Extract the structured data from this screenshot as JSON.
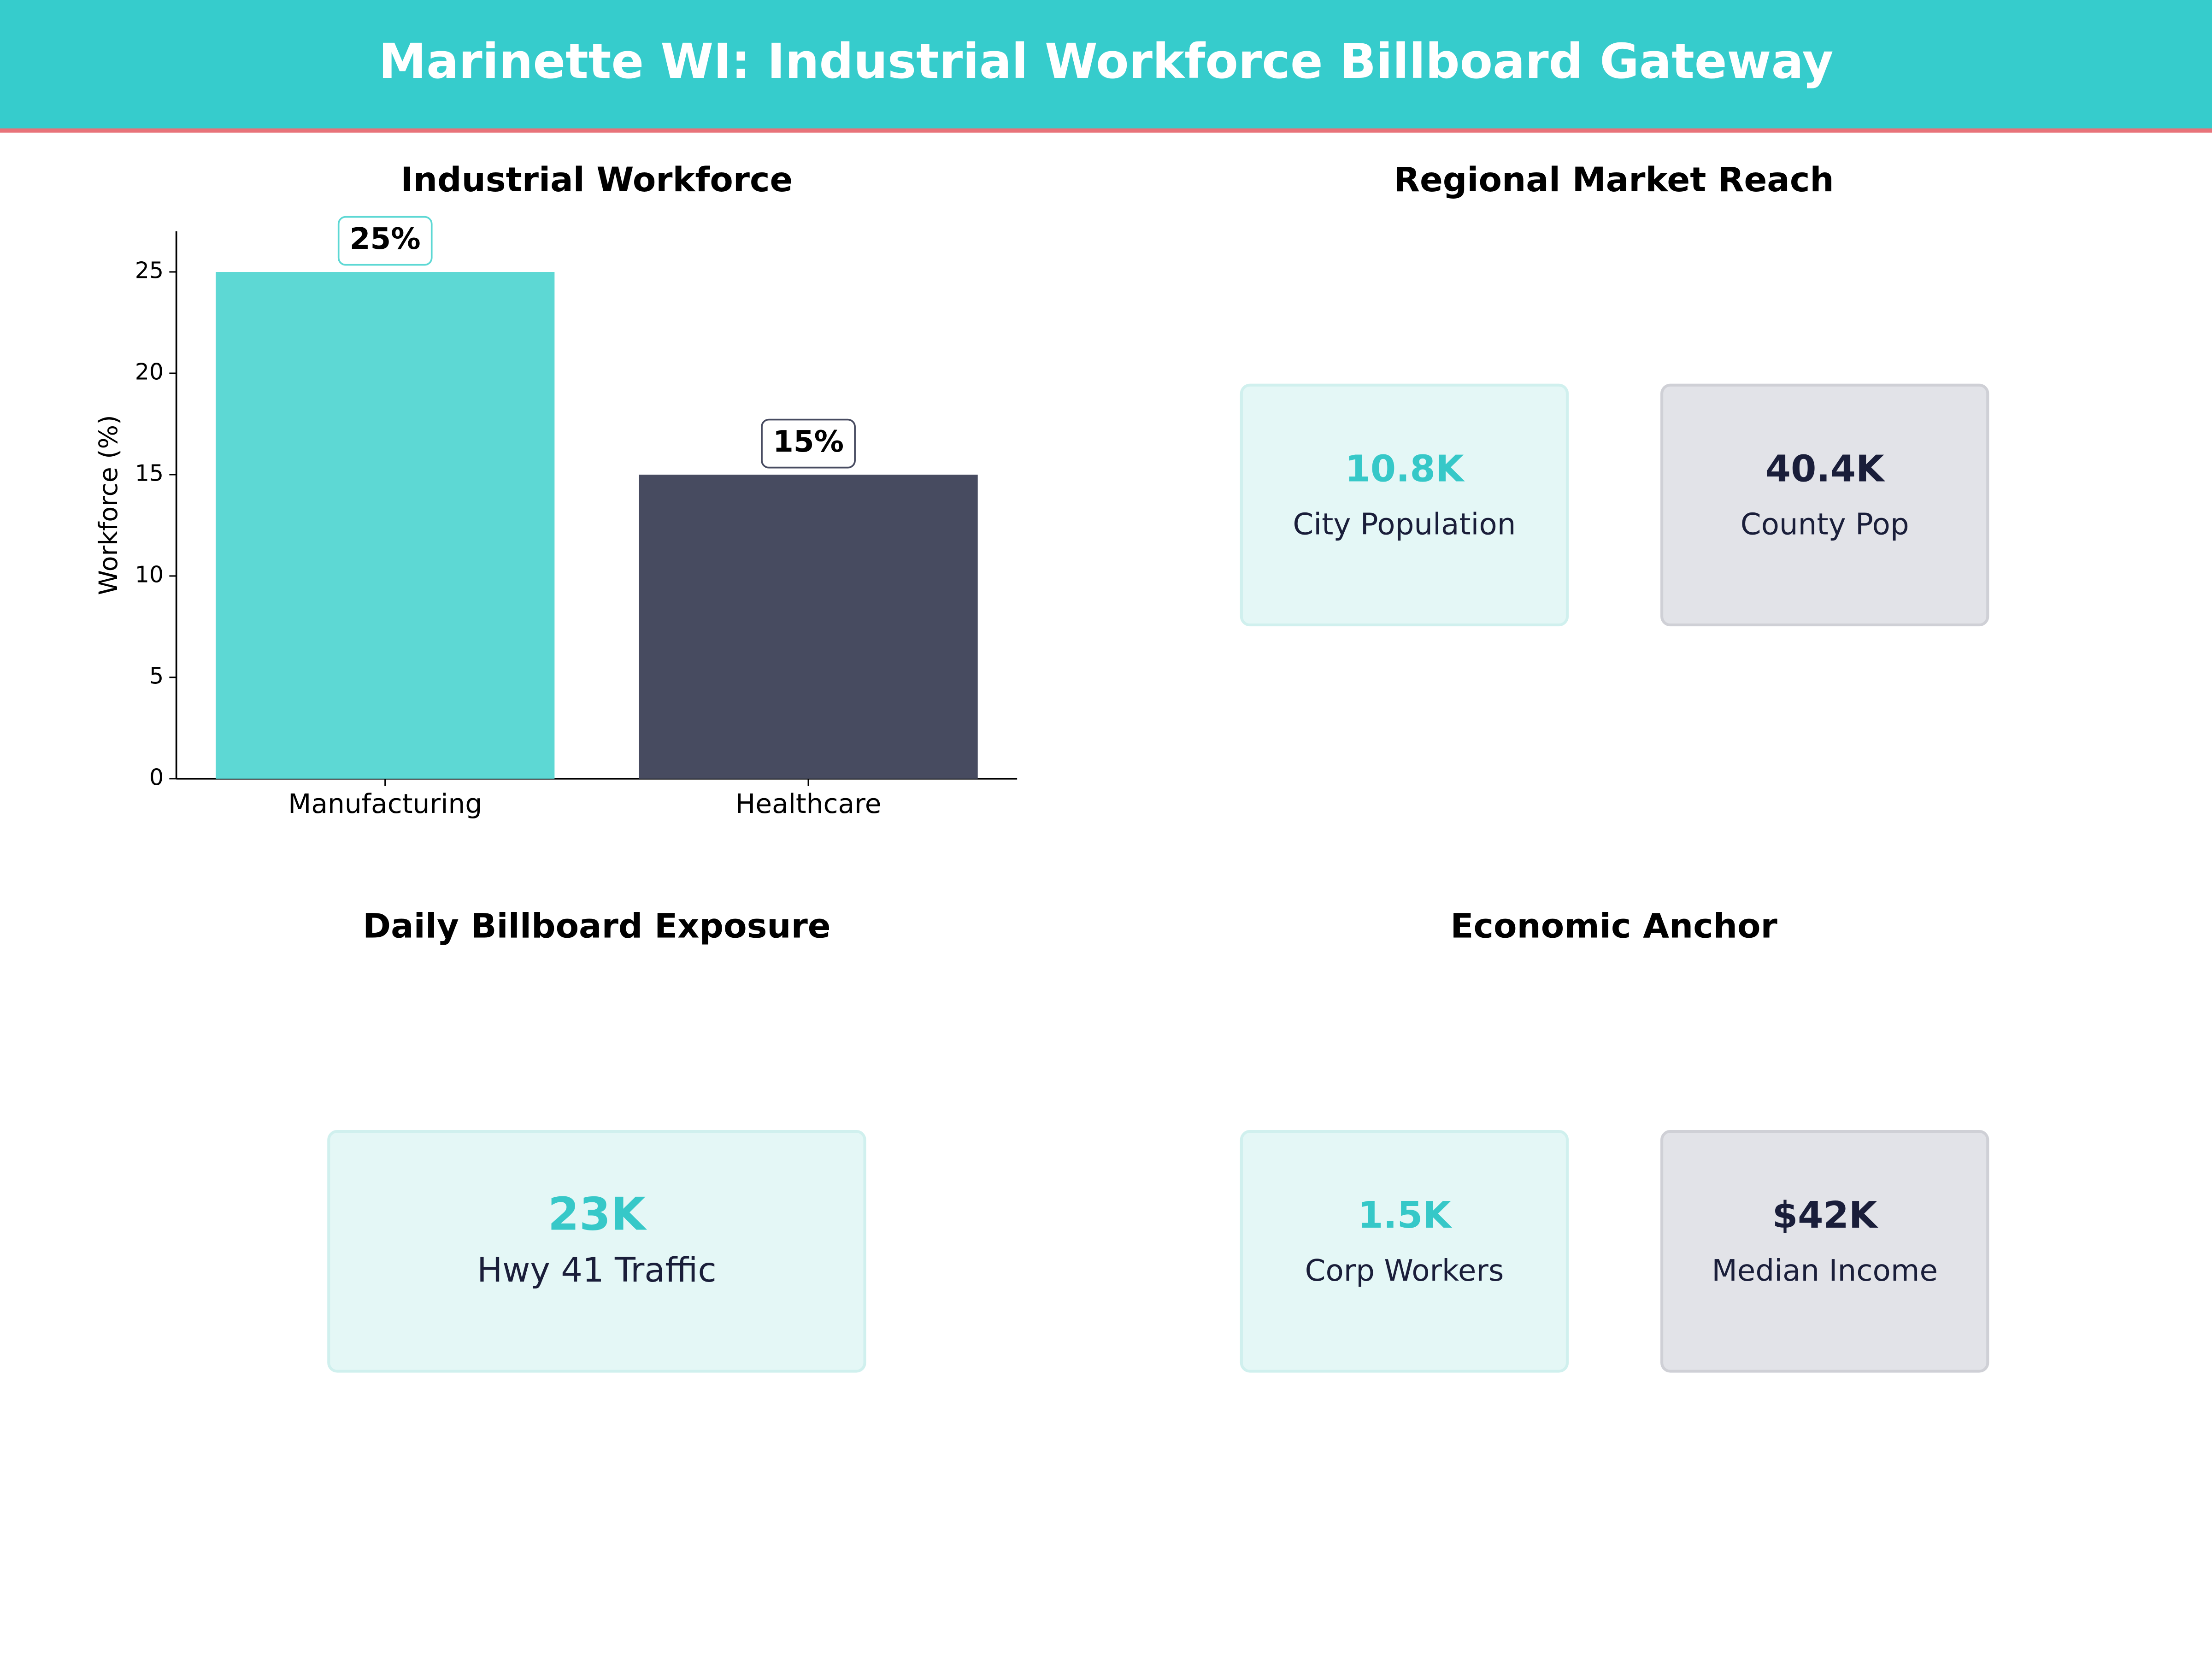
{
  "header": {
    "title": "Marinette WI: Industrial Workforce Billboard Gateway"
  },
  "chart_data": {
    "type": "bar",
    "title": "Industrial Workforce",
    "y_label": "Workforce (%)",
    "categories": [
      "Manufacturing",
      "Healthcare"
    ],
    "values": [
      25,
      15
    ],
    "value_labels": [
      "25%",
      "15%"
    ],
    "colors": [
      "#5dd8d4",
      "#474b60"
    ],
    "ylim": [
      0,
      27
    ],
    "yticks": [
      0,
      5,
      10,
      15,
      20,
      25
    ]
  },
  "panels": [
    {
      "title": "Regional Market Reach",
      "cards": [
        {
          "value": "10.8K",
          "label": "City Population"
        },
        {
          "value": "40.4K",
          "label": "County Pop"
        }
      ]
    },
    {
      "title": "Daily Billboard Exposure",
      "cards": [
        {
          "value": "23K",
          "label": "Hwy 41 Traffic"
        }
      ]
    },
    {
      "title": "Economic Anchor",
      "cards": [
        {
          "value": "1.5K",
          "label": "Corp Workers"
        },
        {
          "value": "$42K",
          "label": "Median Income"
        }
      ]
    }
  ]
}
